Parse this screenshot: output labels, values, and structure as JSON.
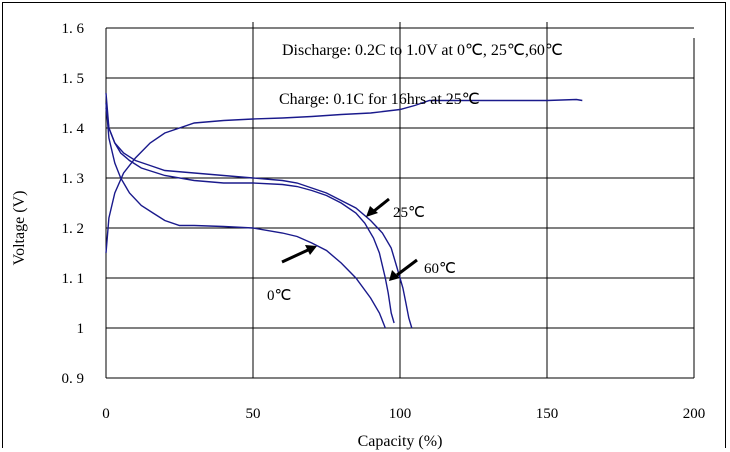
{
  "chart_data": {
    "type": "line",
    "xlabel": "Capacity (%)",
    "ylabel": "Voltage (V)",
    "xlim": [
      0,
      200
    ],
    "ylim": [
      0.9,
      1.6
    ],
    "x_ticks": [
      "0",
      "50",
      "100",
      "150",
      "200"
    ],
    "y_ticks": [
      "0. 9",
      "1",
      "1. 1",
      "1. 2",
      "1. 3",
      "1. 4",
      "1. 5",
      "1. 6"
    ],
    "annotations": [
      "Discharge: 0.2C to 1.0V at 0℃, 25℃,60℃",
      "Charge: 0.1C for 16hrs at 25℃"
    ],
    "line_color": "#1a1a8c",
    "series": [
      {
        "name": "Charge",
        "x": [
          0,
          1,
          3,
          6,
          10,
          15,
          20,
          30,
          40,
          50,
          60,
          70,
          80,
          90,
          100,
          105,
          110,
          120,
          130,
          140,
          150,
          160,
          162
        ],
        "y": [
          1.15,
          1.22,
          1.27,
          1.31,
          1.34,
          1.37,
          1.39,
          1.41,
          1.415,
          1.418,
          1.42,
          1.423,
          1.427,
          1.43,
          1.437,
          1.445,
          1.455,
          1.455,
          1.455,
          1.455,
          1.455,
          1.457,
          1.455
        ]
      },
      {
        "name": "0℃",
        "x": [
          0,
          1,
          3,
          5,
          8,
          12,
          16,
          20,
          25,
          30,
          40,
          50,
          60,
          65,
          70,
          75,
          80,
          85,
          90,
          93,
          95
        ],
        "y": [
          1.45,
          1.38,
          1.33,
          1.3,
          1.27,
          1.245,
          1.23,
          1.215,
          1.205,
          1.205,
          1.203,
          1.2,
          1.19,
          1.183,
          1.17,
          1.155,
          1.13,
          1.1,
          1.06,
          1.03,
          1.0
        ]
      },
      {
        "name": "25℃",
        "x": [
          0,
          1,
          3,
          5,
          8,
          12,
          20,
          30,
          40,
          50,
          60,
          65,
          70,
          75,
          80,
          85,
          88,
          91,
          93,
          95,
          96,
          97,
          98
        ],
        "y": [
          1.47,
          1.4,
          1.37,
          1.35,
          1.335,
          1.32,
          1.305,
          1.295,
          1.29,
          1.29,
          1.287,
          1.283,
          1.275,
          1.265,
          1.25,
          1.23,
          1.21,
          1.18,
          1.15,
          1.1,
          1.07,
          1.03,
          1.01
        ]
      },
      {
        "name": "60℃",
        "x": [
          0,
          1,
          3,
          6,
          10,
          15,
          20,
          30,
          40,
          50,
          60,
          65,
          70,
          75,
          80,
          85,
          90,
          94,
          97,
          99,
          101,
          102,
          103,
          104
        ],
        "y": [
          1.44,
          1.4,
          1.37,
          1.35,
          1.335,
          1.325,
          1.315,
          1.31,
          1.305,
          1.3,
          1.295,
          1.29,
          1.28,
          1.27,
          1.255,
          1.24,
          1.215,
          1.19,
          1.16,
          1.12,
          1.08,
          1.05,
          1.02,
          1.0
        ]
      }
    ]
  }
}
